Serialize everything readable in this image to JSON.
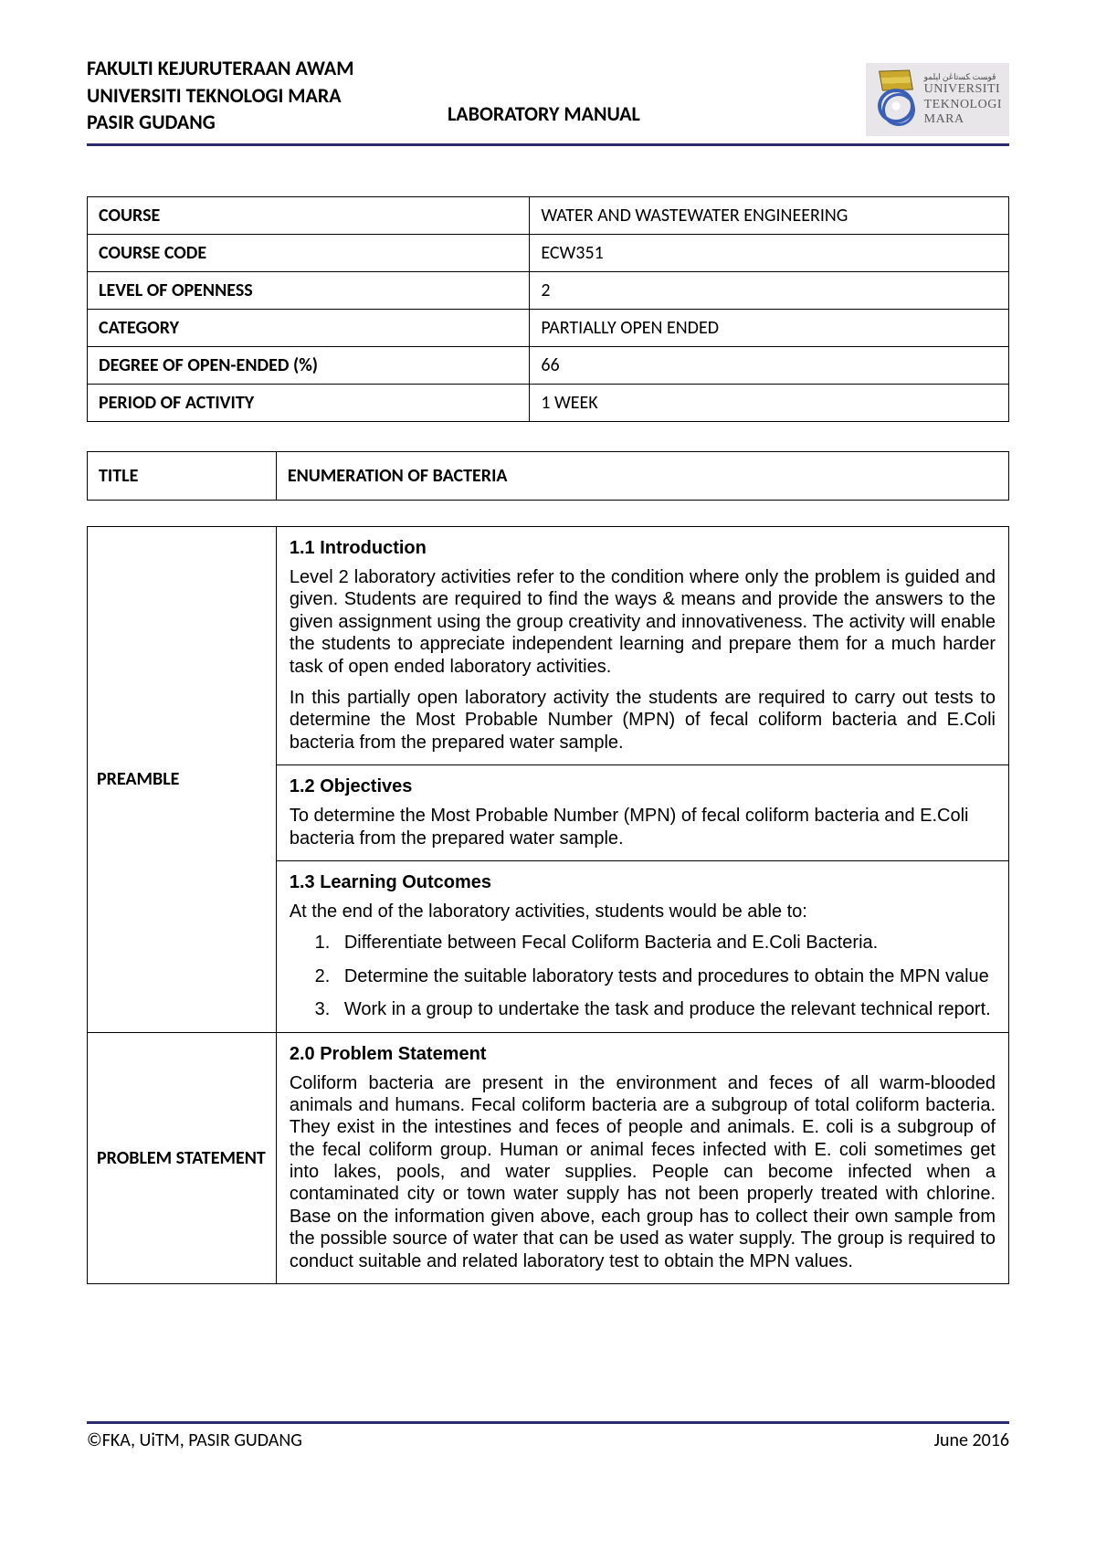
{
  "header": {
    "line1": "FAKULTI KEJURUTERAAN AWAM",
    "line2": "UNIVERSITI TEKNOLOGI MARA",
    "line3": "PASIR GUDANG",
    "center": "LABORATORY MANUAL",
    "logo_text1": "UNIVERSITI",
    "logo_text2": "TEKNOLOGI",
    "logo_text3": "MARA",
    "logo_script": "ڤوﺴﺖ ﻜﺴﺗﺎڠن ﺍﻴﻠﻤﻮ"
  },
  "info_rows": [
    {
      "label": "COURSE",
      "value": "WATER AND WASTEWATER ENGINEERING"
    },
    {
      "label": "COURSE CODE",
      "value": "ECW351"
    },
    {
      "label": "LEVEL OF OPENNESS",
      "value": "2"
    },
    {
      "label": "CATEGORY",
      "value": "PARTIALLY OPEN ENDED"
    },
    {
      "label": "DEGREE OF OPEN-ENDED (%)",
      "value": "66"
    },
    {
      "label": "PERIOD OF ACTIVITY",
      "value": "1 WEEK"
    }
  ],
  "title_row": {
    "label": "TITLE",
    "value": "ENUMERATION OF BACTERIA"
  },
  "preamble": {
    "label": "PREAMBLE",
    "s1": {
      "heading": "1.1   Introduction",
      "p1": "Level 2 laboratory activities refer to the condition where only the problem is guided and given. Students are required to find the ways & means and provide the answers to the given assignment using the group creativity and innovativeness. The activity will enable the students to appreciate independent learning and prepare them for a much harder task of open ended laboratory activities.",
      "p2": "In this partially open laboratory activity the students are required to carry out tests to determine the Most Probable Number (MPN) of fecal coliform bacteria and E.Coli bacteria from the prepared water sample."
    },
    "s2": {
      "heading": "1.2   Objectives",
      "p1": "To determine the Most Probable Number (MPN) of fecal coliform bacteria and E.Coli bacteria from the prepared water sample."
    },
    "s3": {
      "heading": "1.3   Learning Outcomes",
      "p1": "At the end of the laboratory activities, students would be able to:",
      "li1": "Differentiate between Fecal Coliform Bacteria and E.Coli Bacteria.",
      "li2": "Determine the suitable laboratory tests and procedures to obtain the MPN value",
      "li3": "Work in a group to undertake the task and produce the relevant technical report."
    }
  },
  "problem": {
    "label": "PROBLEM STATEMENT",
    "heading": "2.0   Problem Statement",
    "p1": "Coliform bacteria are present in the environment and feces of all warm-blooded animals and humans. Fecal coliform bacteria are a subgroup of total coliform bacteria. They exist in the intestines and feces of people and animals. E. coli is a subgroup of the fecal coliform group. Human or animal feces infected with E. coli sometimes get into lakes, pools, and water supplies. People can become infected when a contaminated city or town water supply has not been properly treated with chlorine. Base on the information given above, each group has to collect their own sample from the possible source of water that can be used as water supply. The group is required to conduct suitable and related laboratory test to obtain the MPN values."
  },
  "footer": {
    "left": "©FKA, UiTM, PASIR GUDANG",
    "right": "June 2016"
  },
  "colors": {
    "rule": "#2b2b6b",
    "text": "#000000",
    "bg": "#ffffff",
    "logo_bg": "#e8e6e9"
  }
}
